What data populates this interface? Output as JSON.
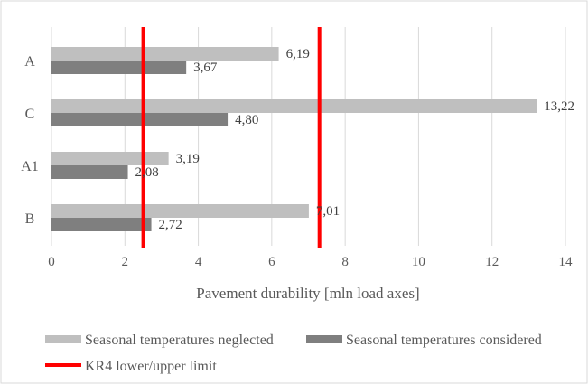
{
  "chart_data": {
    "type": "bar",
    "orientation": "horizontal",
    "categories": [
      "A",
      "C",
      "A1",
      "B"
    ],
    "series": [
      {
        "name": "Seasonal temperatures neglected",
        "values": [
          6.19,
          13.22,
          3.19,
          7.01
        ],
        "labels": [
          "6,19",
          "13,22",
          "3,19",
          "7,01"
        ],
        "color": "#bfbfbf"
      },
      {
        "name": "Seasonal temperatures considered",
        "values": [
          3.67,
          4.8,
          2.08,
          2.72
        ],
        "labels": [
          "3,67",
          "4,80",
          "2,08",
          "2,72"
        ],
        "color": "#7f7f7f"
      }
    ],
    "reference_lines": [
      {
        "name": "KR4 lower/upper limit",
        "values": [
          2.5,
          7.3
        ],
        "color": "#ff0000"
      }
    ],
    "xlabel": "Pavement durability [mln load axes]",
    "ylabel": "",
    "xlim": [
      0,
      14
    ],
    "xticks": [
      0,
      2,
      4,
      6,
      8,
      10,
      12,
      14
    ],
    "grid": "vertical",
    "legend": "bottom"
  }
}
